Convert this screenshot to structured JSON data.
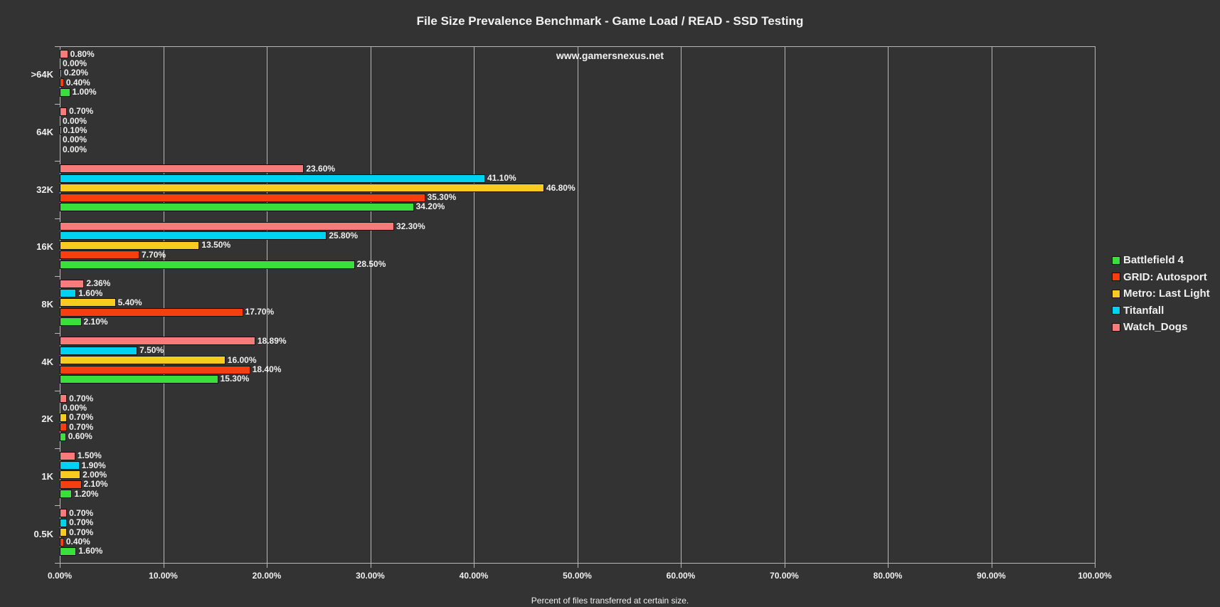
{
  "chart_data": {
    "type": "bar",
    "orientation": "horizontal",
    "title": "File Size Prevalence Benchmark - Game Load / READ - SSD Testing",
    "watermark": "www.gamersnexus.net",
    "xlabel": "Percent of files transferred at certain size.",
    "ylabel": "",
    "xlim": [
      0,
      100
    ],
    "xticks": [
      "0.00%",
      "10.00%",
      "20.00%",
      "30.00%",
      "40.00%",
      "50.00%",
      "60.00%",
      "70.00%",
      "80.00%",
      "90.00%",
      "100.00%"
    ],
    "grid": true,
    "legend_position": "right",
    "categories": [
      ">64K",
      "64K",
      "32K",
      "16K",
      "8K",
      "4K",
      "2K",
      "1K",
      "0.5K"
    ],
    "series": [
      {
        "name": "Battlefield 4",
        "color": "#39e03c",
        "values": [
          1.0,
          0.0,
          34.2,
          28.5,
          2.1,
          15.3,
          0.6,
          1.2,
          1.6
        ],
        "labels": [
          "1.00%",
          "0.00%",
          "34.20%",
          "28.50%",
          "2.10%",
          "15.30%",
          "0.60%",
          "1.20%",
          "1.60%"
        ]
      },
      {
        "name": "GRID: Autosport",
        "color": "#f63f10",
        "values": [
          0.4,
          0.0,
          35.3,
          7.7,
          17.7,
          18.4,
          0.7,
          2.1,
          0.4
        ],
        "labels": [
          "0.40%",
          "0.00%",
          "35.30%",
          "7.70%",
          "17.70%",
          "18.40%",
          "0.70%",
          "2.10%",
          "0.40%"
        ]
      },
      {
        "name": "Metro: Last Light",
        "color": "#f8cb20",
        "values": [
          0.2,
          0.1,
          46.8,
          13.5,
          5.4,
          16.0,
          0.7,
          2.0,
          0.7
        ],
        "labels": [
          "0.20%",
          "0.10%",
          "46.80%",
          "13.50%",
          "5.40%",
          "16.00%",
          "0.70%",
          "2.00%",
          "0.70%"
        ]
      },
      {
        "name": "Titanfall",
        "color": "#00d3f2",
        "values": [
          0.0,
          0.0,
          41.1,
          25.8,
          1.6,
          7.5,
          0.0,
          1.9,
          0.7
        ],
        "labels": [
          "0.00%",
          "0.00%",
          "41.10%",
          "25.80%",
          "1.60%",
          "7.50%",
          "0.00%",
          "1.90%",
          "0.70%"
        ]
      },
      {
        "name": "Watch_Dogs",
        "color": "#f77b7b",
        "values": [
          0.8,
          0.7,
          23.6,
          32.3,
          2.36,
          18.89,
          0.7,
          1.5,
          0.7
        ],
        "labels": [
          "0.80%",
          "0.70%",
          "23.60%",
          "32.30%",
          "2.36%",
          "18.89%",
          "0.70%",
          "1.50%",
          "0.70%"
        ]
      }
    ]
  }
}
